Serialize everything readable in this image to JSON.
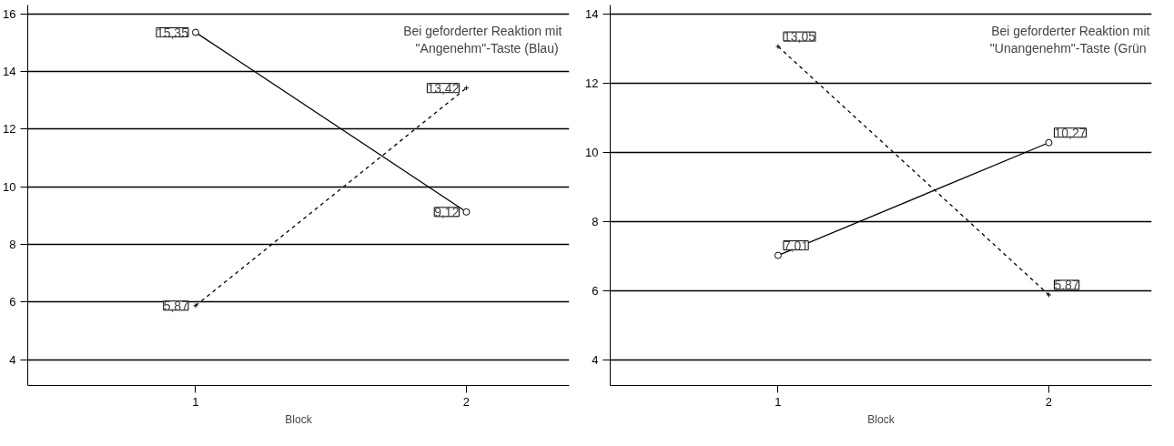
{
  "chart_data": [
    {
      "type": "line",
      "categories": [
        "1",
        "2"
      ],
      "xlabel": "Block",
      "ylim": [
        3.1,
        16.3
      ],
      "yticks": [
        4,
        6,
        8,
        10,
        12,
        14,
        16
      ],
      "grid": "y",
      "annotations": [
        "Bei geforderter Reaktion mit\n\"Angenehm\"-Taste  (Blau)"
      ],
      "series": [
        {
          "color": "#000000",
          "values": [
            15.35,
            9.12
          ],
          "value_labels": [
            "15,35",
            "9,12"
          ],
          "marker": "circle",
          "line_style": "solid"
        },
        {
          "color": "#000000",
          "values": [
            5.87,
            13.42
          ],
          "value_labels": [
            "5,87",
            "13,42"
          ],
          "marker": "cross",
          "line_style": "dashed"
        }
      ]
    },
    {
      "type": "line",
      "categories": [
        "1",
        "2"
      ],
      "xlabel": "Block",
      "ylim": [
        3.25,
        14.25
      ],
      "yticks": [
        4,
        6,
        8,
        10,
        12,
        14
      ],
      "grid": "y",
      "annotations": [
        "Bei geforderter Reaktion mit\n\"Unangenehm\"-Taste  (Grün"
      ],
      "series": [
        {
          "color": "#000000",
          "values": [
            7.01,
            10.27
          ],
          "value_labels": [
            "7,01",
            "10,27"
          ],
          "marker": "circle",
          "line_style": "solid"
        },
        {
          "color": "#000000",
          "values": [
            13.05,
            5.87
          ],
          "value_labels": [
            "13,05",
            "5,87"
          ],
          "marker": "cross",
          "line_style": "dashed"
        }
      ]
    }
  ]
}
